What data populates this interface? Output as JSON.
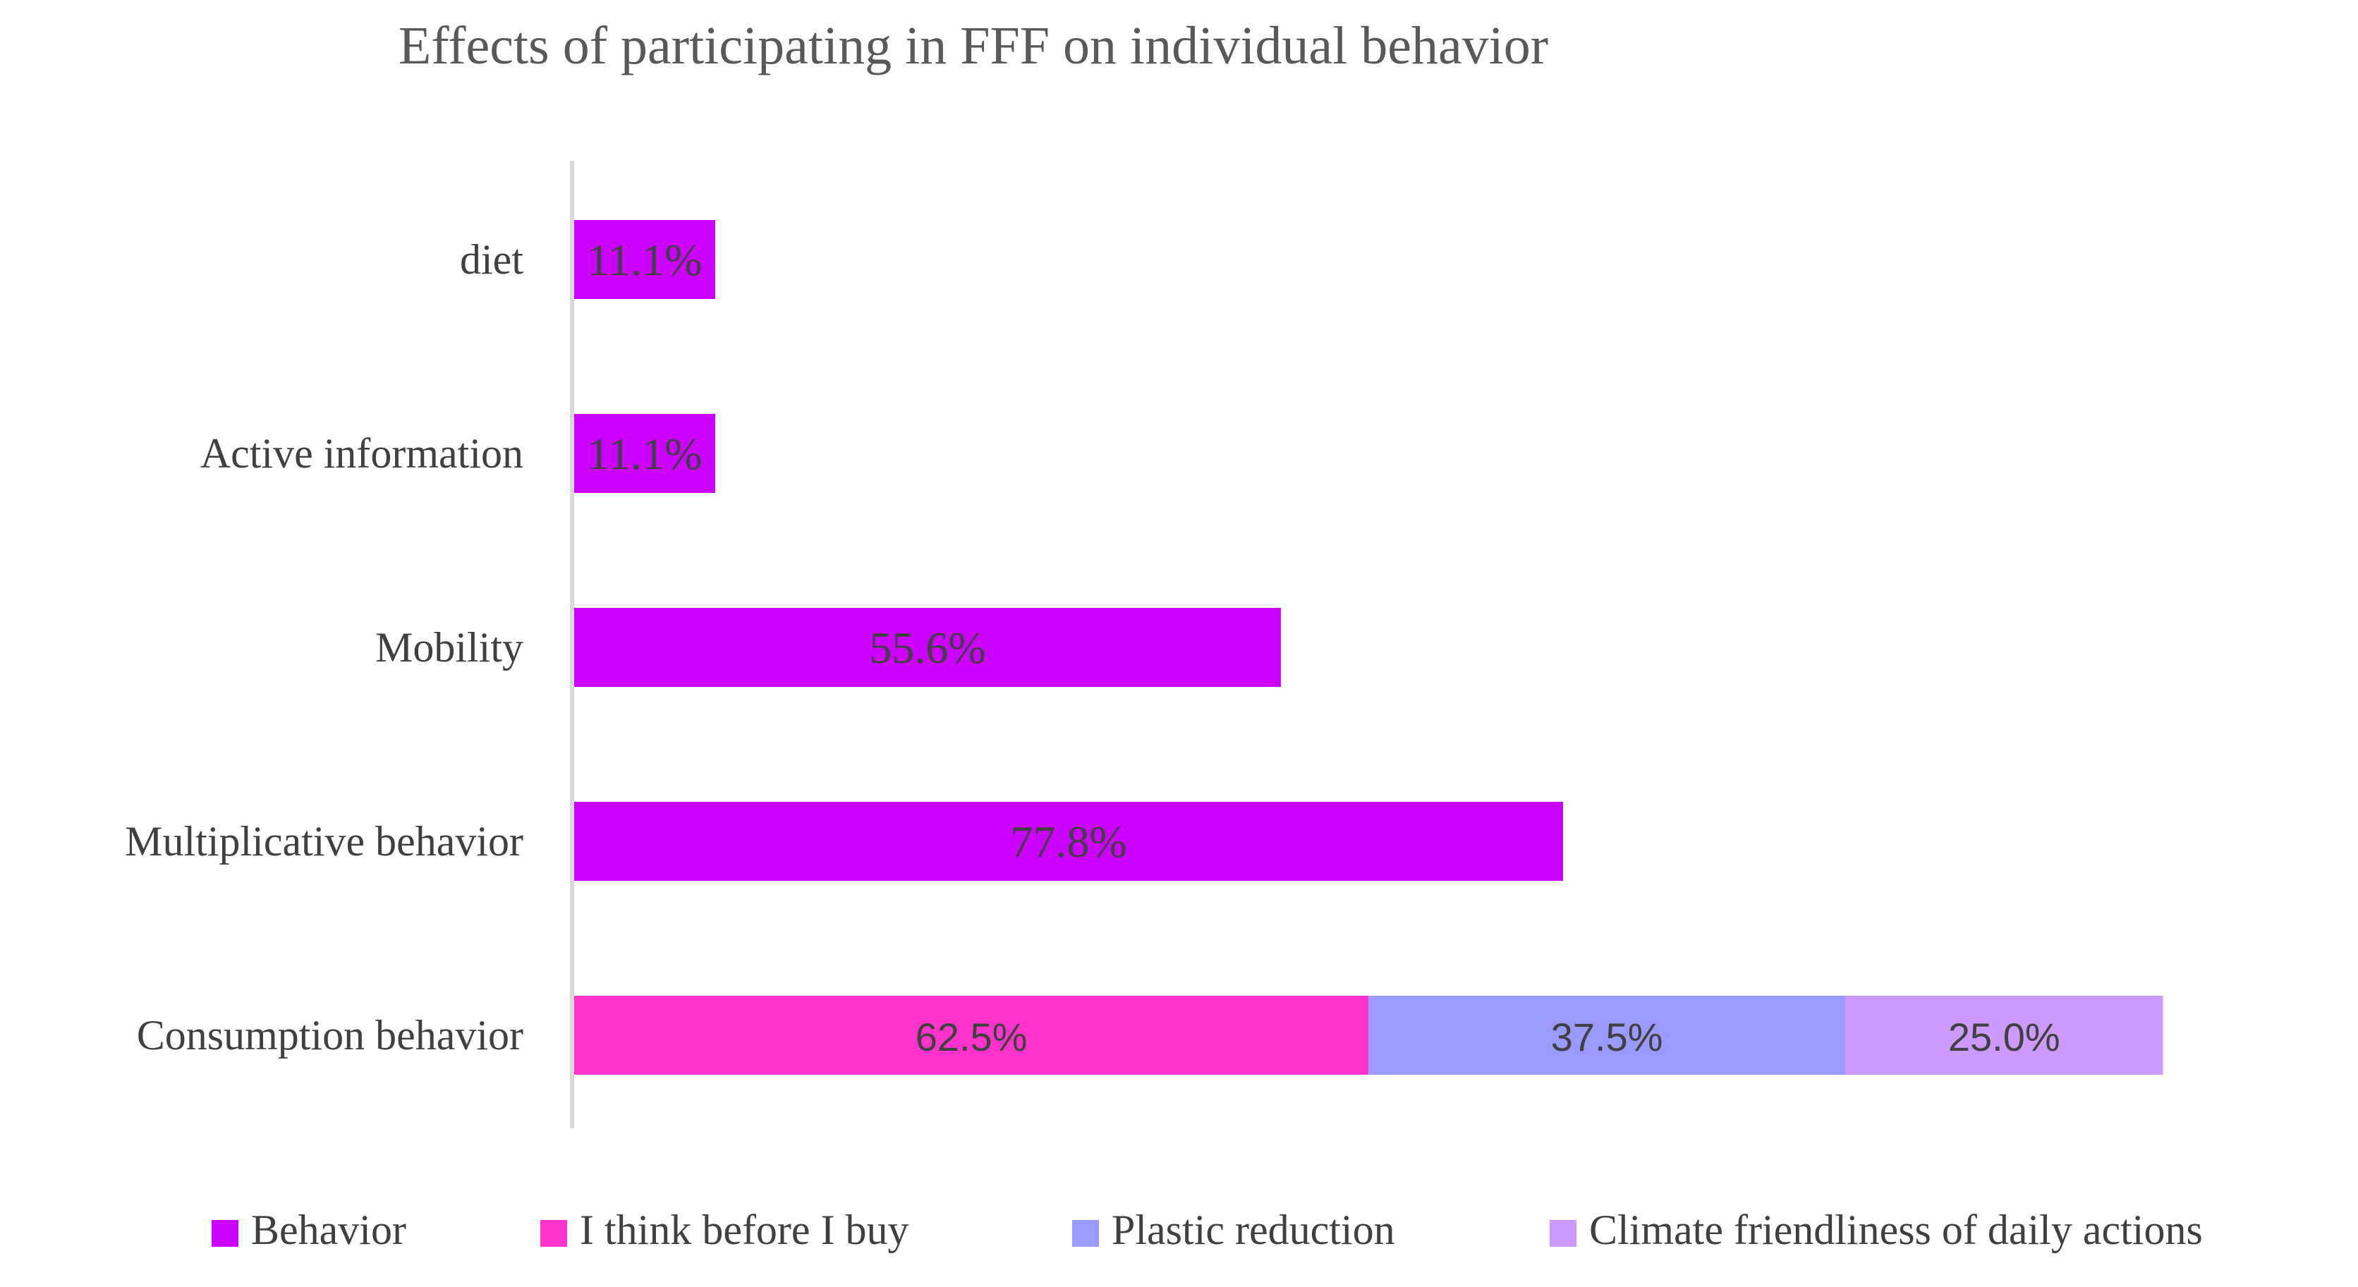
{
  "chart_data": {
    "type": "bar",
    "orientation": "horizontal",
    "stacked": true,
    "title": "Effects of participating in FFF on individual behavior",
    "categories": [
      "diet",
      "Active information",
      "Mobility",
      "Multiplicative behavior",
      "Consumption behavior"
    ],
    "series": [
      {
        "name": "Behavior",
        "color": "#CC00FF",
        "values": [
          11.1,
          11.1,
          55.6,
          77.8,
          null
        ],
        "labels": [
          "11.1%",
          "11.1%",
          "55.6%",
          "77.8%",
          ""
        ]
      },
      {
        "name": "I think before I buy",
        "color": "#FF33CC",
        "values": [
          null,
          null,
          null,
          null,
          62.5
        ],
        "labels": [
          "",
          "",
          "",
          "",
          "62.5%"
        ]
      },
      {
        "name": "Plastic reduction",
        "color": "#9999FF",
        "values": [
          null,
          null,
          null,
          null,
          37.5
        ],
        "labels": [
          "",
          "",
          "",
          "",
          "37.5%"
        ]
      },
      {
        "name": "Climate friendliness of daily actions",
        "color": "#CC99FF",
        "values": [
          null,
          null,
          null,
          null,
          25.0
        ],
        "labels": [
          "",
          "",
          "",
          "",
          "25.0%"
        ]
      }
    ],
    "value_unit": "%",
    "xaxis_visible": false,
    "grid": false,
    "legend_position": "bottom"
  }
}
